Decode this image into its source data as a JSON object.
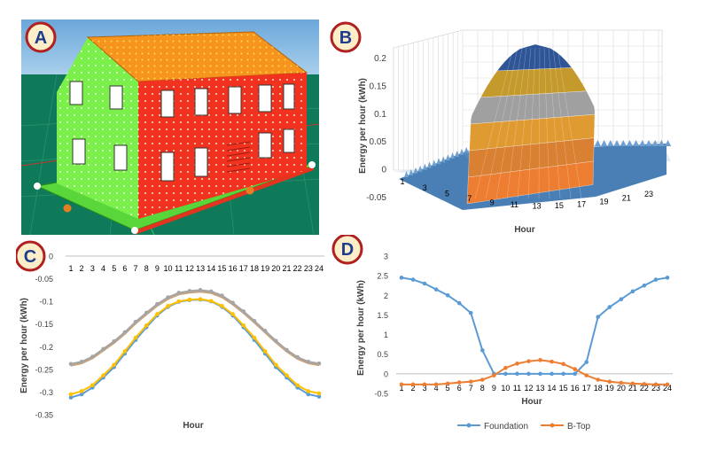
{
  "badges": {
    "a": "A",
    "b": "B",
    "c": "C",
    "d": "D"
  },
  "colors": {
    "panelC_blue": "#5b9bd5",
    "panelC_yellow": "#ffc000",
    "panelC_gray": "#a5a5a5",
    "panelC_tan": "#c9a27a",
    "foundation": "#5b9bd5",
    "btop": "#ed7d31",
    "house_green": "#7cf04a",
    "house_red": "#f0321e",
    "roof_orange": "#f7941d",
    "ground": "#0f7a5a",
    "sky": "#87b8e0"
  },
  "chart_data": [
    {
      "panel": "B",
      "type": "surface3d",
      "ylabel": "Energy per hour (kWh)",
      "xlabel": "Hour",
      "z_ticks": [
        "0.2",
        "0.15",
        "0.1",
        "0.05",
        "0",
        "-0.05"
      ],
      "x_ticks": [
        "1",
        "3",
        "5",
        "7",
        "9",
        "11",
        "13",
        "15",
        "17",
        "19",
        "21",
        "23"
      ],
      "band_colors": [
        "#2f5597",
        "#c59a2c",
        "#a0a0a0",
        "#e09a32",
        "#5b9bd5",
        "#ed7d31"
      ]
    },
    {
      "panel": "C",
      "type": "line",
      "ylabel": "Energy per hour (kWh)",
      "xlabel": "Hour",
      "categories": [
        "1",
        "2",
        "3",
        "4",
        "5",
        "6",
        "7",
        "8",
        "9",
        "10",
        "11",
        "12",
        "13",
        "14",
        "15",
        "16",
        "17",
        "18",
        "19",
        "20",
        "21",
        "22",
        "23",
        "24"
      ],
      "ylim": [
        -0.35,
        0
      ],
      "y_ticks": [
        "0",
        "-0.05",
        "-0.1",
        "-0.15",
        "-0.2",
        "-0.25",
        "-0.3",
        "-0.35"
      ],
      "series": [
        {
          "name": "series-blue",
          "values": [
            -0.312,
            -0.305,
            -0.29,
            -0.268,
            -0.245,
            -0.215,
            -0.185,
            -0.157,
            -0.131,
            -0.112,
            -0.101,
            -0.097,
            -0.096,
            -0.1,
            -0.112,
            -0.131,
            -0.157,
            -0.185,
            -0.215,
            -0.245,
            -0.268,
            -0.29,
            -0.305,
            -0.31
          ]
        },
        {
          "name": "series-yellow",
          "values": [
            -0.305,
            -0.298,
            -0.285,
            -0.263,
            -0.24,
            -0.21,
            -0.18,
            -0.153,
            -0.128,
            -0.11,
            -0.1,
            -0.096,
            -0.095,
            -0.099,
            -0.11,
            -0.128,
            -0.153,
            -0.18,
            -0.21,
            -0.24,
            -0.263,
            -0.285,
            -0.298,
            -0.303
          ]
        },
        {
          "name": "series-gray",
          "values": [
            -0.238,
            -0.233,
            -0.222,
            -0.205,
            -0.188,
            -0.168,
            -0.145,
            -0.125,
            -0.106,
            -0.091,
            -0.081,
            -0.077,
            -0.075,
            -0.078,
            -0.087,
            -0.103,
            -0.122,
            -0.143,
            -0.165,
            -0.187,
            -0.207,
            -0.223,
            -0.233,
            -0.237
          ]
        }
      ]
    },
    {
      "panel": "D",
      "type": "line",
      "ylabel": "Energy per hour (kWh)",
      "xlabel": "Hour",
      "categories": [
        "1",
        "2",
        "3",
        "4",
        "5",
        "6",
        "7",
        "8",
        "9",
        "10",
        "11",
        "12",
        "13",
        "14",
        "15",
        "16",
        "17",
        "18",
        "19",
        "20",
        "21",
        "22",
        "23",
        "24"
      ],
      "ylim": [
        -0.5,
        3
      ],
      "y_ticks": [
        "3",
        "2.5",
        "2",
        "1.5",
        "1",
        "0.5",
        "0",
        "-0.5"
      ],
      "legend": [
        "Foundation",
        "B-Top"
      ],
      "legend_position": "bottom",
      "series": [
        {
          "name": "Foundation",
          "values": [
            2.45,
            2.4,
            2.3,
            2.15,
            2.0,
            1.8,
            1.55,
            0.6,
            0.0,
            0.0,
            0.0,
            0.0,
            0.0,
            0.0,
            0.0,
            0.0,
            0.3,
            1.45,
            1.7,
            1.9,
            2.1,
            2.25,
            2.4,
            2.45
          ]
        },
        {
          "name": "B-Top",
          "values": [
            -0.27,
            -0.27,
            -0.27,
            -0.27,
            -0.25,
            -0.22,
            -0.2,
            -0.15,
            -0.04,
            0.15,
            0.26,
            0.32,
            0.35,
            0.31,
            0.25,
            0.12,
            -0.04,
            -0.15,
            -0.2,
            -0.23,
            -0.25,
            -0.26,
            -0.27,
            -0.27
          ]
        }
      ]
    }
  ]
}
